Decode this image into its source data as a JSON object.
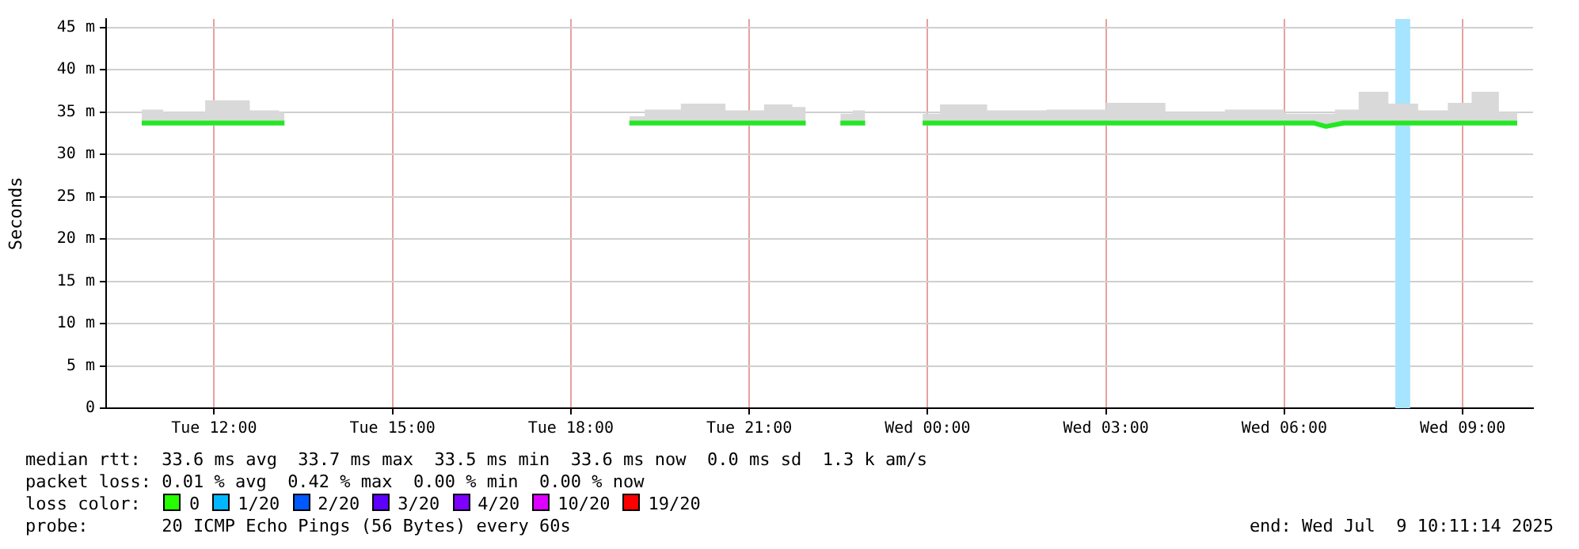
{
  "chart_data": {
    "type": "line",
    "ylabel": "Seconds",
    "x": [
      "2025-07-08T10:47",
      "2025-07-08T11:30",
      "2025-07-08T12:12",
      "2025-07-08T13:00",
      "2025-07-08T13:11",
      "2025-07-08T13:36",
      "2025-07-08T18:59",
      "2025-07-08T19:30",
      "2025-07-08T20:12",
      "2025-07-08T21:00",
      "2025-07-08T21:30",
      "2025-07-08T21:57",
      "2025-07-08T22:12",
      "2025-07-08T22:32",
      "2025-07-08T22:57",
      "2025-07-08T23:24",
      "2025-07-08T23:55",
      "2025-07-09T00:30",
      "2025-07-09T01:30",
      "2025-07-09T02:30",
      "2025-07-09T03:30",
      "2025-07-09T04:30",
      "2025-07-09T05:30",
      "2025-07-09T06:30",
      "2025-07-09T06:42",
      "2025-07-09T07:00",
      "2025-07-09T07:30",
      "2025-07-09T08:00",
      "2025-07-09T08:30",
      "2025-07-09T09:00",
      "2025-07-09T09:18",
      "2025-07-09T09:55"
    ],
    "series": [
      {
        "color": "#22e822",
        "values": [
          33.7,
          33.7,
          33.7,
          33.7,
          33.7,
          null,
          33.7,
          33.7,
          33.7,
          33.7,
          33.7,
          33.7,
          null,
          33.7,
          33.7,
          null,
          33.7,
          33.7,
          33.7,
          33.7,
          33.7,
          33.7,
          33.7,
          33.7,
          33.3,
          33.7,
          33.7,
          33.7,
          33.7,
          33.7,
          33.7,
          33.7
        ],
        "lower": [
          33.4,
          33.4,
          33.4,
          33.4,
          33.4,
          null,
          33.4,
          33.4,
          33.4,
          33.4,
          33.4,
          33.4,
          null,
          33.4,
          33.4,
          null,
          33.4,
          33.4,
          33.4,
          33.4,
          33.4,
          33.4,
          33.4,
          33.4,
          33.2,
          33.4,
          33.4,
          33.4,
          33.4,
          33.4,
          33.4,
          33.4
        ],
        "upper": [
          35.3,
          35.0,
          36.4,
          35.2,
          35.0,
          null,
          34.5,
          35.3,
          36.0,
          35.2,
          35.9,
          35.6,
          null,
          34.8,
          35.2,
          null,
          34.8,
          35.9,
          35.2,
          35.3,
          36.1,
          35.0,
          35.3,
          34.8,
          34.8,
          35.3,
          37.4,
          36.0,
          35.2,
          36.1,
          37.4,
          35.0
        ]
      }
    ],
    "xlim": [
      "2025-07-08T10:11",
      "2025-07-09T10:11"
    ],
    "xticks": [
      {
        "value": "2025-07-08T12:00",
        "label": "Tue 12:00"
      },
      {
        "value": "2025-07-08T15:00",
        "label": "Tue 15:00"
      },
      {
        "value": "2025-07-08T18:00",
        "label": "Tue 18:00"
      },
      {
        "value": "2025-07-08T21:00",
        "label": "Tue 21:00"
      },
      {
        "value": "2025-07-09T00:00",
        "label": "Wed 00:00"
      },
      {
        "value": "2025-07-09T03:00",
        "label": "Wed 03:00"
      },
      {
        "value": "2025-07-09T06:00",
        "label": "Wed 06:00"
      },
      {
        "value": "2025-07-09T09:00",
        "label": "Wed 09:00"
      }
    ],
    "ylim": [
      0,
      46
    ],
    "yticks": [
      0,
      {
        "value": 5,
        "label": "5 m"
      },
      {
        "value": 10,
        "label": "10 m"
      },
      {
        "value": 15,
        "label": "15 m"
      },
      {
        "value": 20,
        "label": "20 m"
      },
      {
        "value": 25,
        "label": "25 m"
      },
      {
        "value": 30,
        "label": "30 m"
      },
      {
        "value": 35,
        "label": "35 m"
      },
      {
        "value": 40,
        "label": "40 m"
      },
      {
        "value": 45,
        "label": "45 m"
      }
    ],
    "bands": [
      {
        "axis": "x",
        "from": "2025-07-09T07:52",
        "to": "2025-07-09T08:07",
        "color": "#a6e4ff"
      }
    ],
    "grid": true,
    "marker": "none",
    "line_style": "solid",
    "annotations": [
      "median rtt:  33.6 ms avg  33.7 ms max  33.5 ms min  33.6 ms now  0.0 ms sd  1.3 k am/s",
      "packet loss: 0.01 % avg  0.42 % max  0.00 % min  0.00 % now",
      "loss color:",
      "0",
      "1/20",
      "2/20",
      "3/20",
      "4/20",
      "10/20",
      "19/20",
      "probe:       20 ICMP Echo Pings (56 Bytes) every 60s",
      "end: Wed Jul  9 10:11:14 2025"
    ]
  }
}
